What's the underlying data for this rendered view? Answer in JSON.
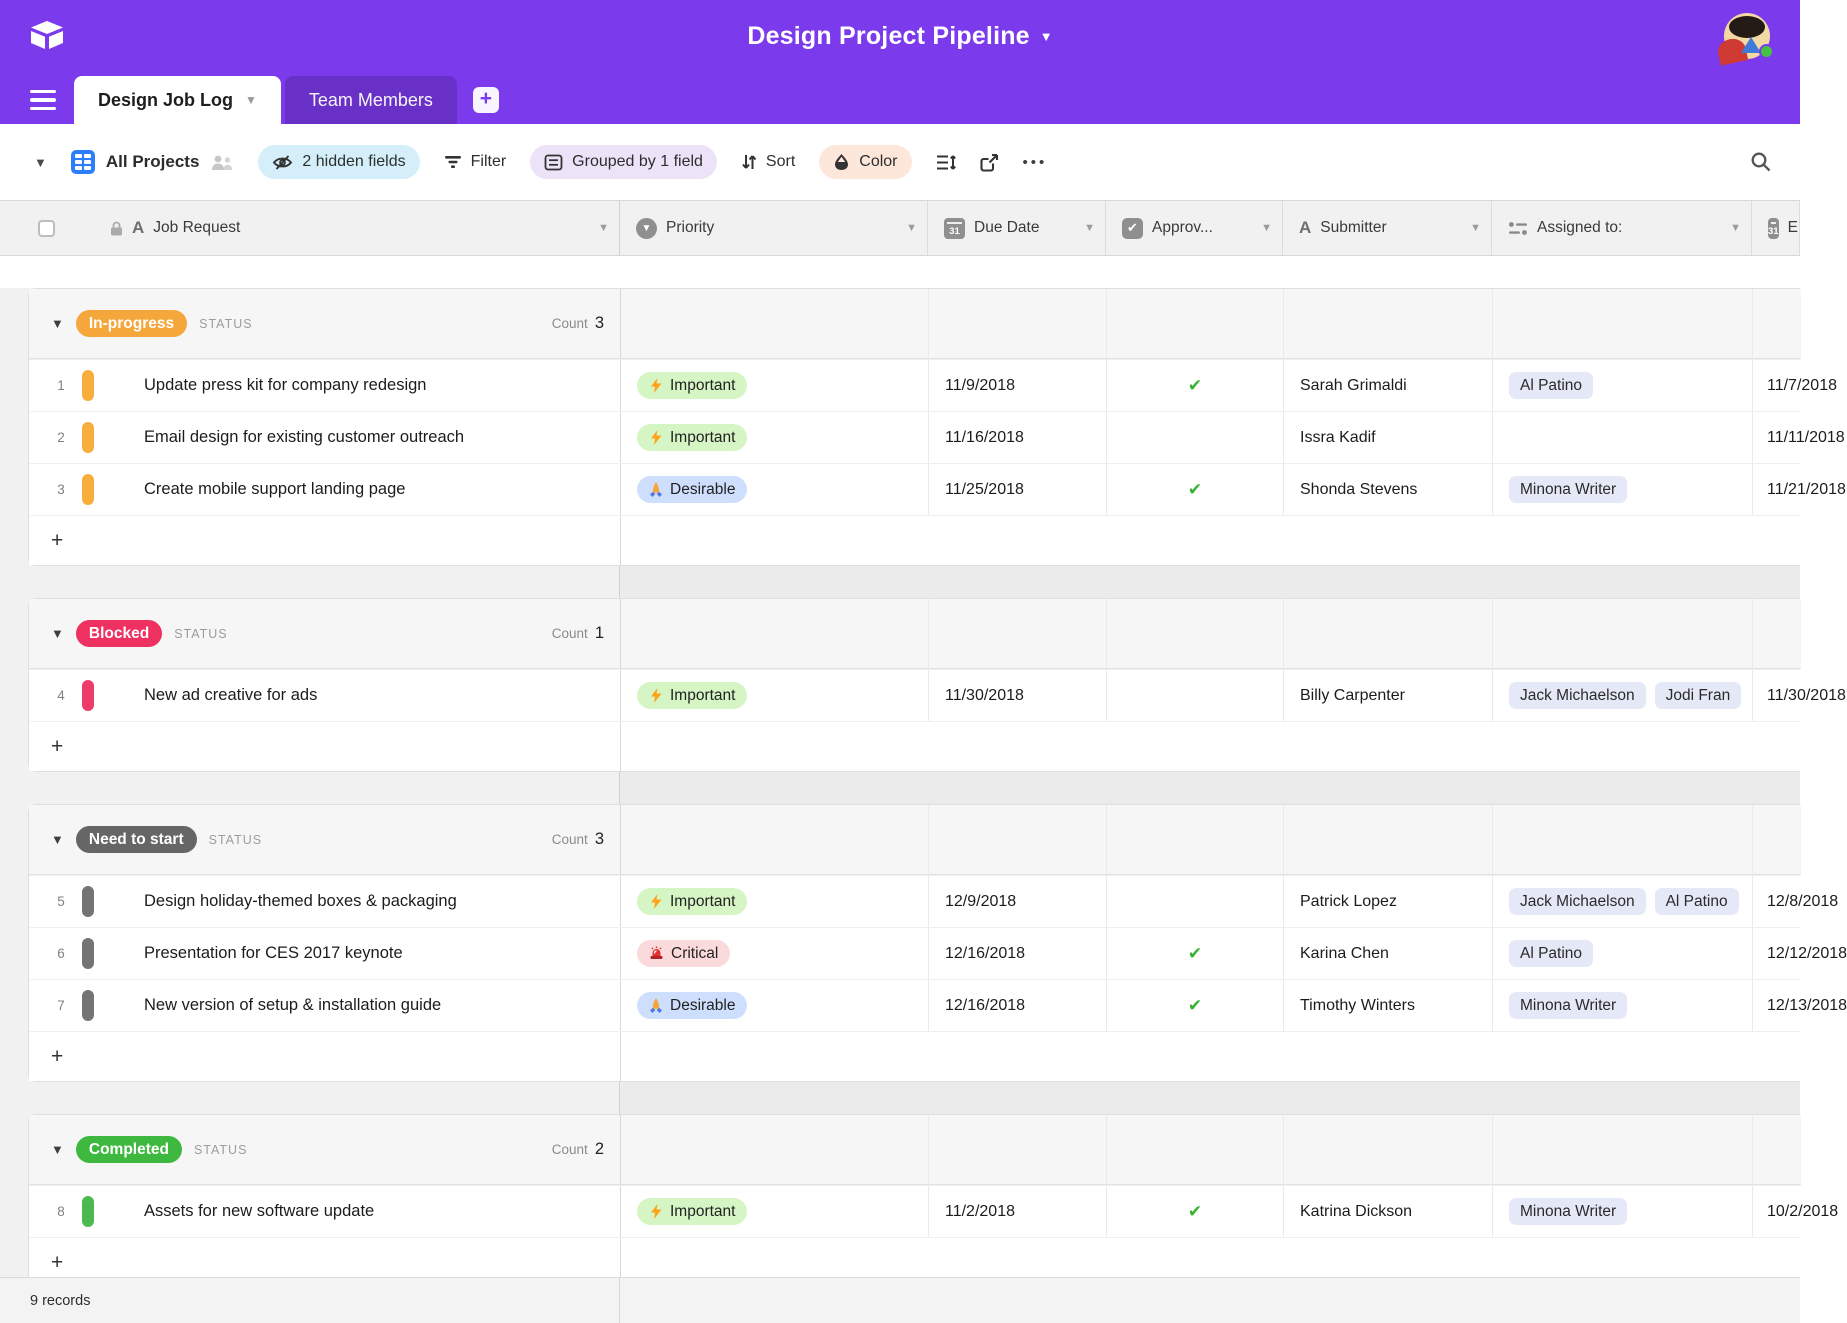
{
  "app": {
    "title": "Design Project Pipeline"
  },
  "tabs": {
    "active": "Design Job Log",
    "inactive": "Team Members"
  },
  "toolbar": {
    "view_name": "All Projects",
    "hidden_fields": "2 hidden fields",
    "filter": "Filter",
    "grouped": "Grouped by 1 field",
    "sort": "Sort",
    "color": "Color",
    "more": "•••"
  },
  "columns": [
    {
      "name": "Job Request"
    },
    {
      "name": "Priority"
    },
    {
      "name": "Due Date"
    },
    {
      "name": "Approv..."
    },
    {
      "name": "Submitter"
    },
    {
      "name": "Assigned to:"
    },
    {
      "name": "E"
    }
  ],
  "colors": {
    "accent_purple": "#7C3AED",
    "hidden_fields_pill": "#D4EFF9",
    "grouped_pill": "#ECE3F9",
    "color_pill": "#FDE7DA",
    "important_bg": "#D6F5C5",
    "desirable_bg": "#CEDFFE",
    "critical_bg": "#FBDADC",
    "assignee_bg": "#E5E8F7",
    "check_green": "#33B433"
  },
  "groups": [
    {
      "status": "In-progress",
      "field_label": "STATUS",
      "count_label": "Count",
      "count": "3",
      "color": "#F5A73B",
      "bar_color": "#F7AE3C",
      "rows": [
        {
          "num": "1",
          "job": "Update press kit for company redesign",
          "priority": {
            "label": "Important",
            "icon": "zap",
            "bg": "#D6F5C5"
          },
          "due": "11/9/2018",
          "approved": true,
          "submitter": "Sarah Grimaldi",
          "assigned": [
            "Al Patino"
          ],
          "end": "11/7/2018"
        },
        {
          "num": "2",
          "job": "Email design for existing customer outreach",
          "priority": {
            "label": "Important",
            "icon": "zap",
            "bg": "#D6F5C5"
          },
          "due": "11/16/2018",
          "approved": false,
          "submitter": "Issra Kadif",
          "assigned": [],
          "end": "11/11/2018"
        },
        {
          "num": "3",
          "job": "Create mobile support landing page",
          "priority": {
            "label": "Desirable",
            "icon": "pray",
            "bg": "#CEDFFE"
          },
          "due": "11/25/2018",
          "approved": true,
          "submitter": "Shonda Stevens",
          "assigned": [
            "Minona Writer"
          ],
          "end": "11/21/2018"
        }
      ]
    },
    {
      "status": "Blocked",
      "field_label": "STATUS",
      "count_label": "Count",
      "count": "1",
      "color": "#EE3160",
      "bar_color": "#EE3C68",
      "rows": [
        {
          "num": "4",
          "job": "New ad creative for ads",
          "priority": {
            "label": "Important",
            "icon": "zap",
            "bg": "#D6F5C5"
          },
          "due": "11/30/2018",
          "approved": false,
          "submitter": "Billy Carpenter",
          "assigned": [
            "Jack Michaelson",
            "Jodi Fran"
          ],
          "end": "11/30/2018"
        }
      ]
    },
    {
      "status": "Need to start",
      "field_label": "STATUS",
      "count_label": "Count",
      "count": "3",
      "color": "#666666",
      "bar_color": "#747474",
      "rows": [
        {
          "num": "5",
          "job": "Design holiday-themed boxes & packaging",
          "priority": {
            "label": "Important",
            "icon": "zap",
            "bg": "#D6F5C5"
          },
          "due": "12/9/2018",
          "approved": false,
          "submitter": "Patrick Lopez",
          "assigned": [
            "Jack Michaelson",
            "Al Patino"
          ],
          "end": "12/8/2018"
        },
        {
          "num": "6",
          "job": "Presentation for CES 2017 keynote",
          "priority": {
            "label": "Critical",
            "icon": "siren",
            "bg": "#FBDADC"
          },
          "due": "12/16/2018",
          "approved": true,
          "submitter": "Karina Chen",
          "assigned": [
            "Al Patino"
          ],
          "end": "12/12/2018"
        },
        {
          "num": "7",
          "job": "New version of setup & installation guide",
          "priority": {
            "label": "Desirable",
            "icon": "pray",
            "bg": "#CEDFFE"
          },
          "due": "12/16/2018",
          "approved": true,
          "submitter": "Timothy Winters",
          "assigned": [
            "Minona Writer"
          ],
          "end": "12/13/2018"
        }
      ]
    },
    {
      "status": "Completed",
      "field_label": "STATUS",
      "count_label": "Count",
      "count": "2",
      "color": "#3FB83F",
      "bar_color": "#4CBB4F",
      "rows": [
        {
          "num": "8",
          "job": "Assets for new software update",
          "priority": {
            "label": "Important",
            "icon": "zap",
            "bg": "#D6F5C5"
          },
          "due": "11/2/2018",
          "approved": true,
          "submitter": "Katrina Dickson",
          "assigned": [
            "Minona Writer"
          ],
          "end": "10/2/2018"
        }
      ]
    }
  ],
  "footer": {
    "records": "9 records"
  }
}
